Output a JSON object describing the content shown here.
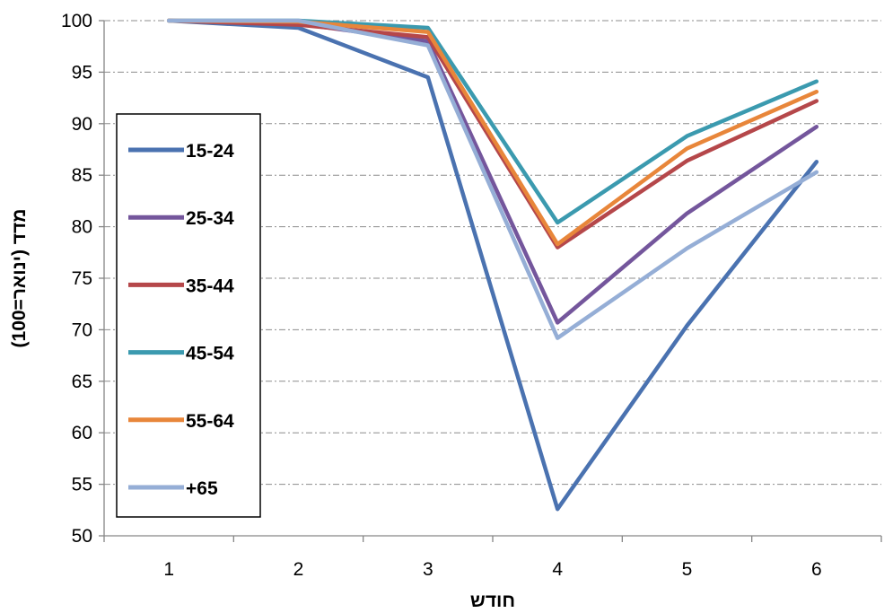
{
  "chart_data": {
    "type": "line",
    "x": [
      1,
      2,
      3,
      4,
      5,
      6
    ],
    "xlabel": "חודש",
    "ylabel": "מדד (ינואר=100)",
    "ylim": [
      50,
      100
    ],
    "yticks": [
      50,
      55,
      60,
      65,
      70,
      75,
      80,
      85,
      90,
      95,
      100
    ],
    "grid": "horizontal dash-dot",
    "legend_position": "left-middle",
    "series": [
      {
        "name": "15-24",
        "color": "#4a72b0",
        "values": [
          100,
          99.3,
          94.5,
          52.6,
          70.4,
          86.3
        ]
      },
      {
        "name": "25-34",
        "color": "#74569c",
        "values": [
          100,
          99.7,
          98.0,
          70.7,
          81.3,
          89.7
        ]
      },
      {
        "name": "35-44",
        "color": "#b5474a",
        "values": [
          100,
          99.6,
          98.4,
          78.0,
          86.4,
          92.2
        ]
      },
      {
        "name": "45-54",
        "color": "#3b9aaf",
        "values": [
          100,
          100.0,
          99.3,
          80.4,
          88.8,
          94.1
        ]
      },
      {
        "name": "55-64",
        "color": "#e8863a",
        "values": [
          100,
          99.9,
          98.9,
          78.3,
          87.6,
          93.1
        ]
      },
      {
        "name": "+65",
        "color": "#95aed6",
        "values": [
          100,
          100.0,
          97.6,
          69.2,
          77.9,
          85.3
        ]
      }
    ]
  }
}
